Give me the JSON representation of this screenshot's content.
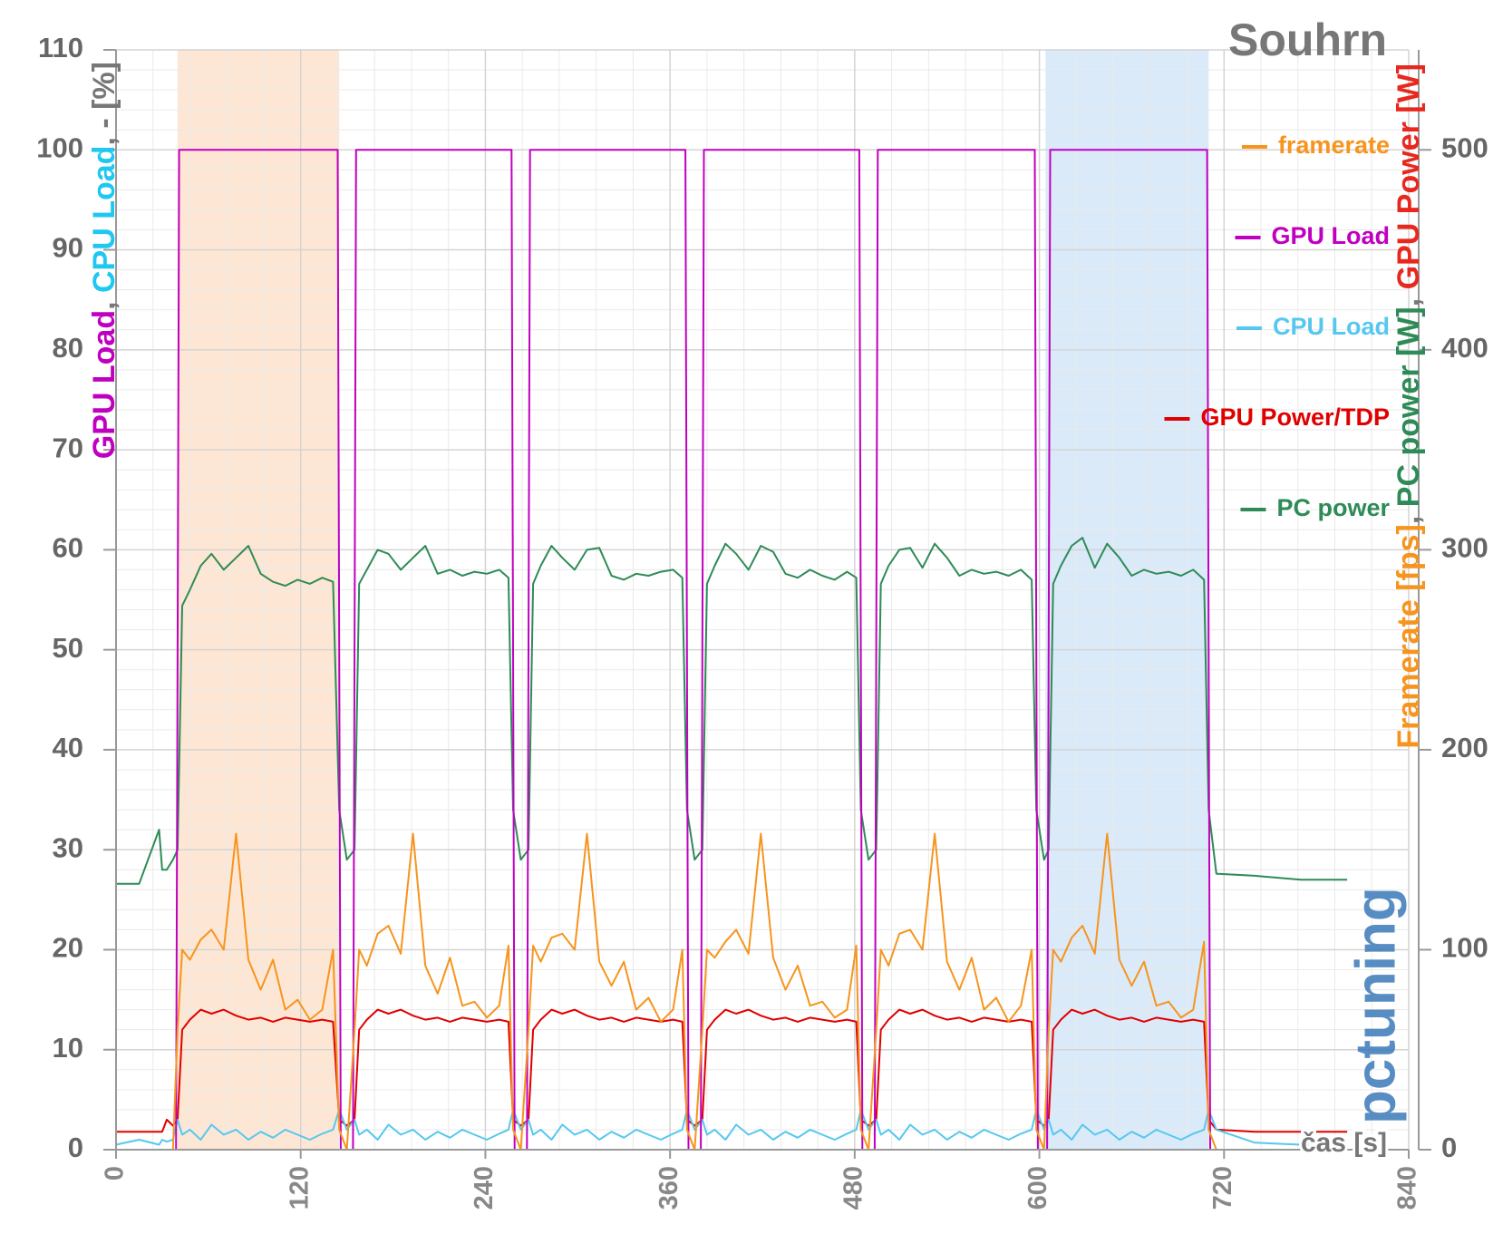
{
  "chart_data": {
    "type": "line",
    "title": "Souhrn",
    "xlabel": "čas [s]",
    "ylabel": [
      {
        "text": "GPU Load",
        "color": "#c000c0"
      },
      {
        "text": ", ",
        "color": "#777777"
      },
      {
        "text": "CPU Load",
        "color": "#1ec8f0"
      },
      {
        "text": ", - [%]",
        "color": "#777777"
      }
    ],
    "y2label": [
      {
        "text": "Framerate [fps]",
        "color": "#f7941d"
      },
      {
        "text": ", ",
        "color": "#777777"
      },
      {
        "text": "PC power [W]",
        "color": "#2e8b57"
      },
      {
        "text": ", ",
        "color": "#777777"
      },
      {
        "text": "GPU Power [W]",
        "color": "#e8281e"
      }
    ],
    "watermark": "pctuning",
    "xlim": [
      0,
      840
    ],
    "xticks": [
      0,
      120,
      240,
      360,
      480,
      600,
      720,
      840
    ],
    "ylim": [
      0,
      110
    ],
    "yticks": [
      0,
      10,
      20,
      30,
      40,
      50,
      60,
      70,
      80,
      90,
      100,
      110
    ],
    "y2lim": [
      0,
      550
    ],
    "y2ticks": [
      0,
      100,
      200,
      300,
      400,
      500
    ],
    "grid": true,
    "legend": "right",
    "highlights": [
      {
        "xrange": [
          40,
          145
        ],
        "color": "#fde3cc"
      },
      {
        "xrange": [
          604,
          710
        ],
        "color": "#d3e6f8"
      }
    ],
    "x": [
      0,
      15,
      28,
      30,
      33,
      37,
      40,
      43,
      48,
      55,
      62,
      70,
      78,
      86,
      94,
      102,
      110,
      118,
      126,
      134,
      141,
      145,
      150,
      155,
      158,
      163,
      170,
      177,
      185,
      193,
      201,
      209,
      217,
      225,
      233,
      241,
      249,
      255,
      258,
      263,
      268,
      271,
      276,
      283,
      290,
      298,
      306,
      314,
      322,
      330,
      338,
      346,
      354,
      362,
      368,
      371,
      376,
      381,
      384,
      389,
      396,
      403,
      411,
      419,
      427,
      435,
      443,
      451,
      459,
      467,
      475,
      481,
      484,
      489,
      494,
      497,
      502,
      509,
      516,
      524,
      532,
      540,
      548,
      556,
      564,
      572,
      580,
      588,
      595,
      598,
      603,
      606,
      609,
      614,
      621,
      628,
      636,
      644,
      652,
      660,
      668,
      676,
      684,
      692,
      700,
      707,
      710,
      715,
      740,
      770,
      800
    ],
    "series": [
      {
        "name": "framerate",
        "color": "#f7941d",
        "axis": "y2",
        "values": [
          0,
          0,
          0,
          0,
          0,
          0,
          60,
          100,
          95,
          105,
          110,
          100,
          158,
          95,
          80,
          95,
          70,
          75,
          65,
          70,
          100,
          10,
          0,
          60,
          100,
          92,
          108,
          112,
          98,
          158,
          92,
          78,
          96,
          72,
          74,
          66,
          72,
          102,
          10,
          0,
          60,
          102,
          94,
          106,
          108,
          100,
          158,
          94,
          82,
          94,
          70,
          76,
          64,
          70,
          100,
          10,
          0,
          60,
          100,
          96,
          104,
          110,
          98,
          158,
          96,
          80,
          92,
          72,
          74,
          66,
          70,
          102,
          10,
          0,
          60,
          100,
          92,
          108,
          110,
          100,
          158,
          94,
          80,
          96,
          70,
          76,
          64,
          72,
          100,
          10,
          0,
          60,
          100,
          94,
          106,
          112,
          98,
          158,
          95,
          82,
          94,
          72,
          74,
          66,
          70,
          104,
          10,
          0,
          0,
          0,
          0
        ]
      },
      {
        "name": "GPU Load",
        "color": "#c000c0",
        "x": [
          0,
          39,
          41,
          144,
          146,
          154,
          156,
          257,
          259,
          267,
          269,
          370,
          372,
          380,
          382,
          483,
          485,
          493,
          495,
          597,
          599,
          605,
          607,
          709,
          711,
          800
        ],
        "values": [
          0,
          0,
          100,
          100,
          0,
          0,
          100,
          100,
          0,
          0,
          100,
          100,
          0,
          0,
          100,
          100,
          0,
          0,
          100,
          100,
          0,
          0,
          100,
          100,
          0,
          0
        ]
      },
      {
        "name": "CPU Load",
        "color": "#55c8ef",
        "values": [
          0.5,
          1,
          0.5,
          1,
          0.8,
          1,
          3,
          1.5,
          2,
          1,
          2.5,
          1.5,
          2,
          1,
          1.8,
          1.2,
          2,
          1.5,
          1,
          1.6,
          2,
          4,
          2,
          3,
          1.5,
          2,
          1,
          2.5,
          1.5,
          2,
          1,
          1.8,
          1.2,
          2,
          1.5,
          1,
          1.6,
          2,
          4,
          2,
          3,
          1.5,
          2,
          1,
          2.5,
          1.5,
          2,
          1,
          1.8,
          1.2,
          2,
          1.5,
          1,
          1.6,
          2,
          4,
          2,
          3,
          1.5,
          2,
          1,
          2.5,
          1.5,
          2,
          1,
          1.8,
          1.2,
          2,
          1.5,
          1,
          1.6,
          2,
          4,
          2,
          3,
          1.5,
          2,
          1,
          2.5,
          1.5,
          2,
          1,
          1.8,
          1.2,
          2,
          1.5,
          1,
          1.6,
          2,
          4,
          2,
          3,
          1.5,
          2,
          1,
          2.5,
          1.5,
          2,
          1,
          1.8,
          1.2,
          2,
          1.5,
          1,
          1.6,
          2,
          4,
          2,
          0.7,
          0.5,
          0.5
        ]
      },
      {
        "name": "GPU Power/TDP",
        "color": "#e00000",
        "axis": "y2",
        "values": [
          9,
          9,
          9,
          9,
          15,
          12,
          15,
          60,
          65,
          70,
          68,
          70,
          67,
          65,
          66,
          64,
          66,
          65,
          64,
          65,
          64,
          15,
          12,
          15,
          60,
          65,
          70,
          68,
          70,
          67,
          65,
          66,
          64,
          66,
          65,
          64,
          65,
          64,
          15,
          12,
          15,
          60,
          65,
          70,
          68,
          70,
          67,
          65,
          66,
          64,
          66,
          65,
          64,
          65,
          64,
          15,
          12,
          15,
          60,
          65,
          70,
          68,
          70,
          67,
          65,
          66,
          64,
          66,
          65,
          64,
          65,
          64,
          15,
          12,
          15,
          60,
          65,
          70,
          68,
          70,
          67,
          65,
          66,
          64,
          66,
          65,
          64,
          65,
          64,
          15,
          12,
          15,
          60,
          65,
          70,
          68,
          70,
          67,
          65,
          66,
          64,
          66,
          65,
          64,
          65,
          64,
          15,
          10,
          9,
          9,
          9
        ]
      },
      {
        "name": "PC power",
        "color": "#2e8b57",
        "axis": "y2",
        "values": [
          133,
          133,
          160,
          140,
          140,
          145,
          150,
          272,
          280,
          292,
          298,
          290,
          296,
          302,
          288,
          284,
          282,
          285,
          283,
          286,
          284,
          170,
          145,
          150,
          283,
          290,
          300,
          298,
          290,
          296,
          302,
          288,
          290,
          287,
          289,
          288,
          290,
          286,
          170,
          145,
          150,
          283,
          292,
          302,
          296,
          290,
          300,
          301,
          287,
          285,
          288,
          287,
          289,
          290,
          286,
          170,
          145,
          150,
          283,
          292,
          303,
          298,
          290,
          302,
          299,
          288,
          286,
          290,
          287,
          285,
          289,
          286,
          170,
          145,
          150,
          283,
          292,
          300,
          301,
          291,
          303,
          296,
          287,
          290,
          288,
          289,
          287,
          290,
          285,
          170,
          145,
          150,
          283,
          292,
          302,
          306,
          291,
          303,
          296,
          287,
          290,
          288,
          289,
          287,
          290,
          285,
          170,
          138,
          137,
          135,
          135
        ]
      }
    ]
  }
}
